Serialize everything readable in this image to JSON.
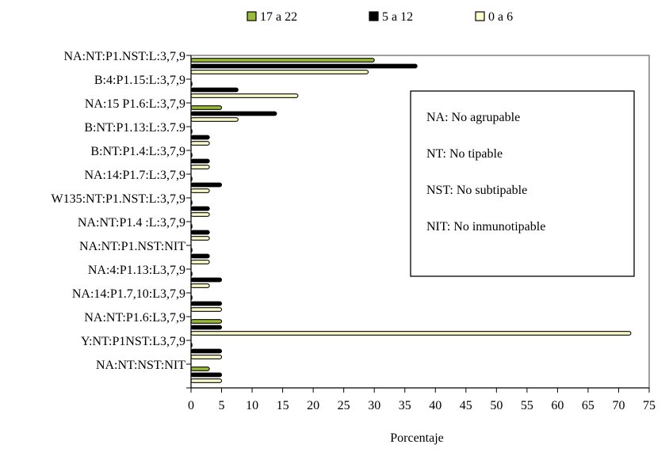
{
  "chart_data": {
    "type": "bar",
    "orientation": "horizontal",
    "title": "",
    "xlabel": "Porcentaje",
    "ylabel": "",
    "xlim": [
      0,
      75
    ],
    "x_ticks": [
      0,
      5,
      10,
      15,
      20,
      25,
      30,
      35,
      40,
      45,
      50,
      55,
      60,
      65,
      70,
      75
    ],
    "grid": false,
    "legend_position": "top",
    "legend": [
      {
        "label": "17 a 22",
        "color": "#9bbb3a"
      },
      {
        "label": "5 a 12",
        "color": "#000000"
      },
      {
        "label": "0 a 6",
        "color": "#ffffcc"
      }
    ],
    "categories": [
      "NA:NT:P1.NST:L:3,7,9",
      "B:4:P1.15:L:3,7,9",
      "NA:15 P1.6:L:3,7,9",
      "B:NT:P1.13:L:3.7.9",
      "B:NT:P1.4:L:3,7,9",
      "NA:14:P1.7:L:3,7,9",
      "W135:NT:P1.NST:L:3,7,9",
      "NA:NT:P1.4 :L:3,7,9",
      "NA:NT:P1.NST:NIT",
      "NA:4:P1.13:L3,7,9",
      "NA:14:P1.7,10:L3,7,9",
      "NA:NT:P1.6:L3,7,9",
      "Y:NT:P1NST:L3,7,9",
      "NA:NT:NST:NIT"
    ],
    "series": [
      {
        "name": "17 a 22",
        "color": "#9bbb3a",
        "values": [
          30,
          0,
          5,
          0,
          0,
          0,
          0,
          0,
          0,
          0,
          0,
          5,
          0,
          3
        ]
      },
      {
        "name": "5 a 12",
        "color": "#000000",
        "values": [
          37,
          7.7,
          14,
          3,
          3,
          5,
          3,
          3,
          3,
          5,
          5,
          5,
          5,
          5
        ]
      },
      {
        "name": "0 a 6",
        "color": "#ffffcc",
        "values": [
          29,
          17.5,
          7.7,
          3,
          3,
          3,
          3,
          3,
          3,
          3,
          5,
          72,
          5,
          5
        ]
      }
    ],
    "notes": [
      "NA: No agrupable",
      "NT: No tipable",
      "NST: No subtipable",
      "NIT: No inmunotipable"
    ]
  }
}
